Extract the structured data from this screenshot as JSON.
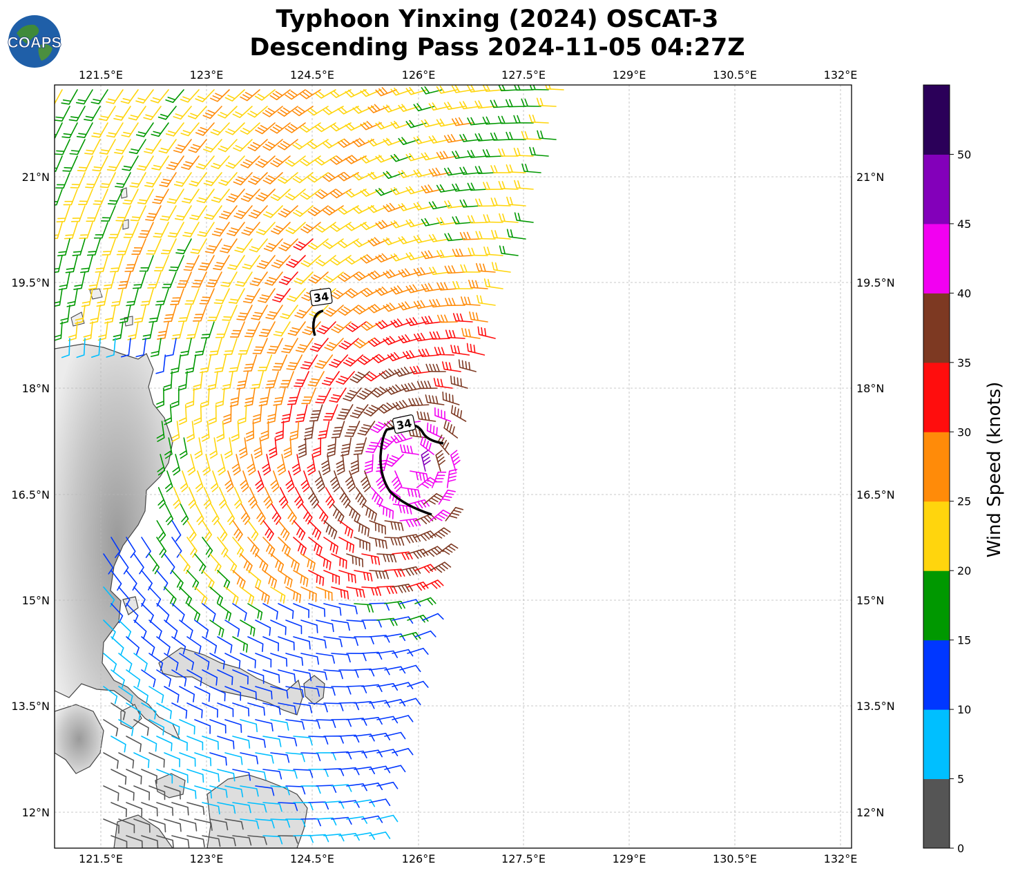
{
  "header": {
    "title_line1": "Typhoon Yinxing (2024) OSCAT-3",
    "title_line2": "Descending Pass 2024-11-05 04:27Z"
  },
  "logo": {
    "text": "COAPS"
  },
  "map": {
    "lon_ticks": [
      "121.5°E",
      "123°E",
      "124.5°E",
      "126°E",
      "127.5°E",
      "129°E",
      "130.5°E",
      "132°E"
    ],
    "lat_ticks": [
      "21°N",
      "19.5°N",
      "18°N",
      "16.5°N",
      "15°N",
      "13.5°N",
      "12°N"
    ],
    "contour_labels": [
      "34",
      "34"
    ]
  },
  "colorbar": {
    "label": "Wind Speed (knots)",
    "ticks": [
      "0",
      "5",
      "10",
      "15",
      "20",
      "25",
      "30",
      "35",
      "40",
      "45",
      "50"
    ],
    "colors": [
      "#555555",
      "#00bfff",
      "#0037ff",
      "#009800",
      "#ffd50d",
      "#ff8b09",
      "#ff0d0d",
      "#7d3922",
      "#f200f1",
      "#8300ba",
      "#2b0059"
    ]
  }
}
